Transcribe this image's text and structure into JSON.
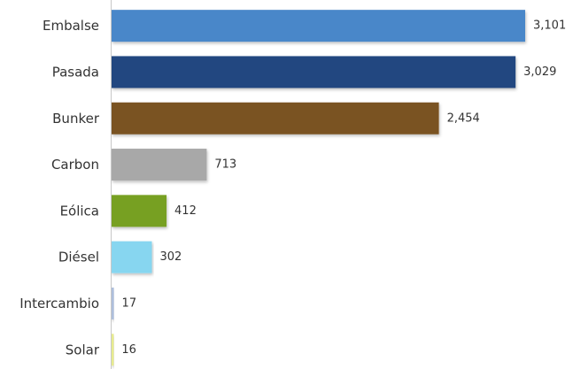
{
  "chart_data": {
    "type": "bar",
    "orientation": "horizontal",
    "title": "",
    "xlabel": "",
    "ylabel": "",
    "categories": [
      "Embalse",
      "Pasada",
      "Bunker",
      "Carbon",
      "Eólica",
      "Diésel",
      "Intercambio",
      "Solar"
    ],
    "values": [
      3101,
      3029,
      2454,
      713,
      412,
      302,
      17,
      16
    ],
    "value_labels": [
      "3,101",
      "3,029",
      "2,454",
      "713",
      "412",
      "302",
      "17",
      "16"
    ],
    "colors": [
      "#4a87c9",
      "#234680",
      "#7a5223",
      "#a8a8a8",
      "#77a020",
      "#87d6f0",
      "#aebfdc",
      "#e8ec8e"
    ],
    "xlim": [
      0,
      3101
    ],
    "grid": false,
    "legend": "none"
  }
}
